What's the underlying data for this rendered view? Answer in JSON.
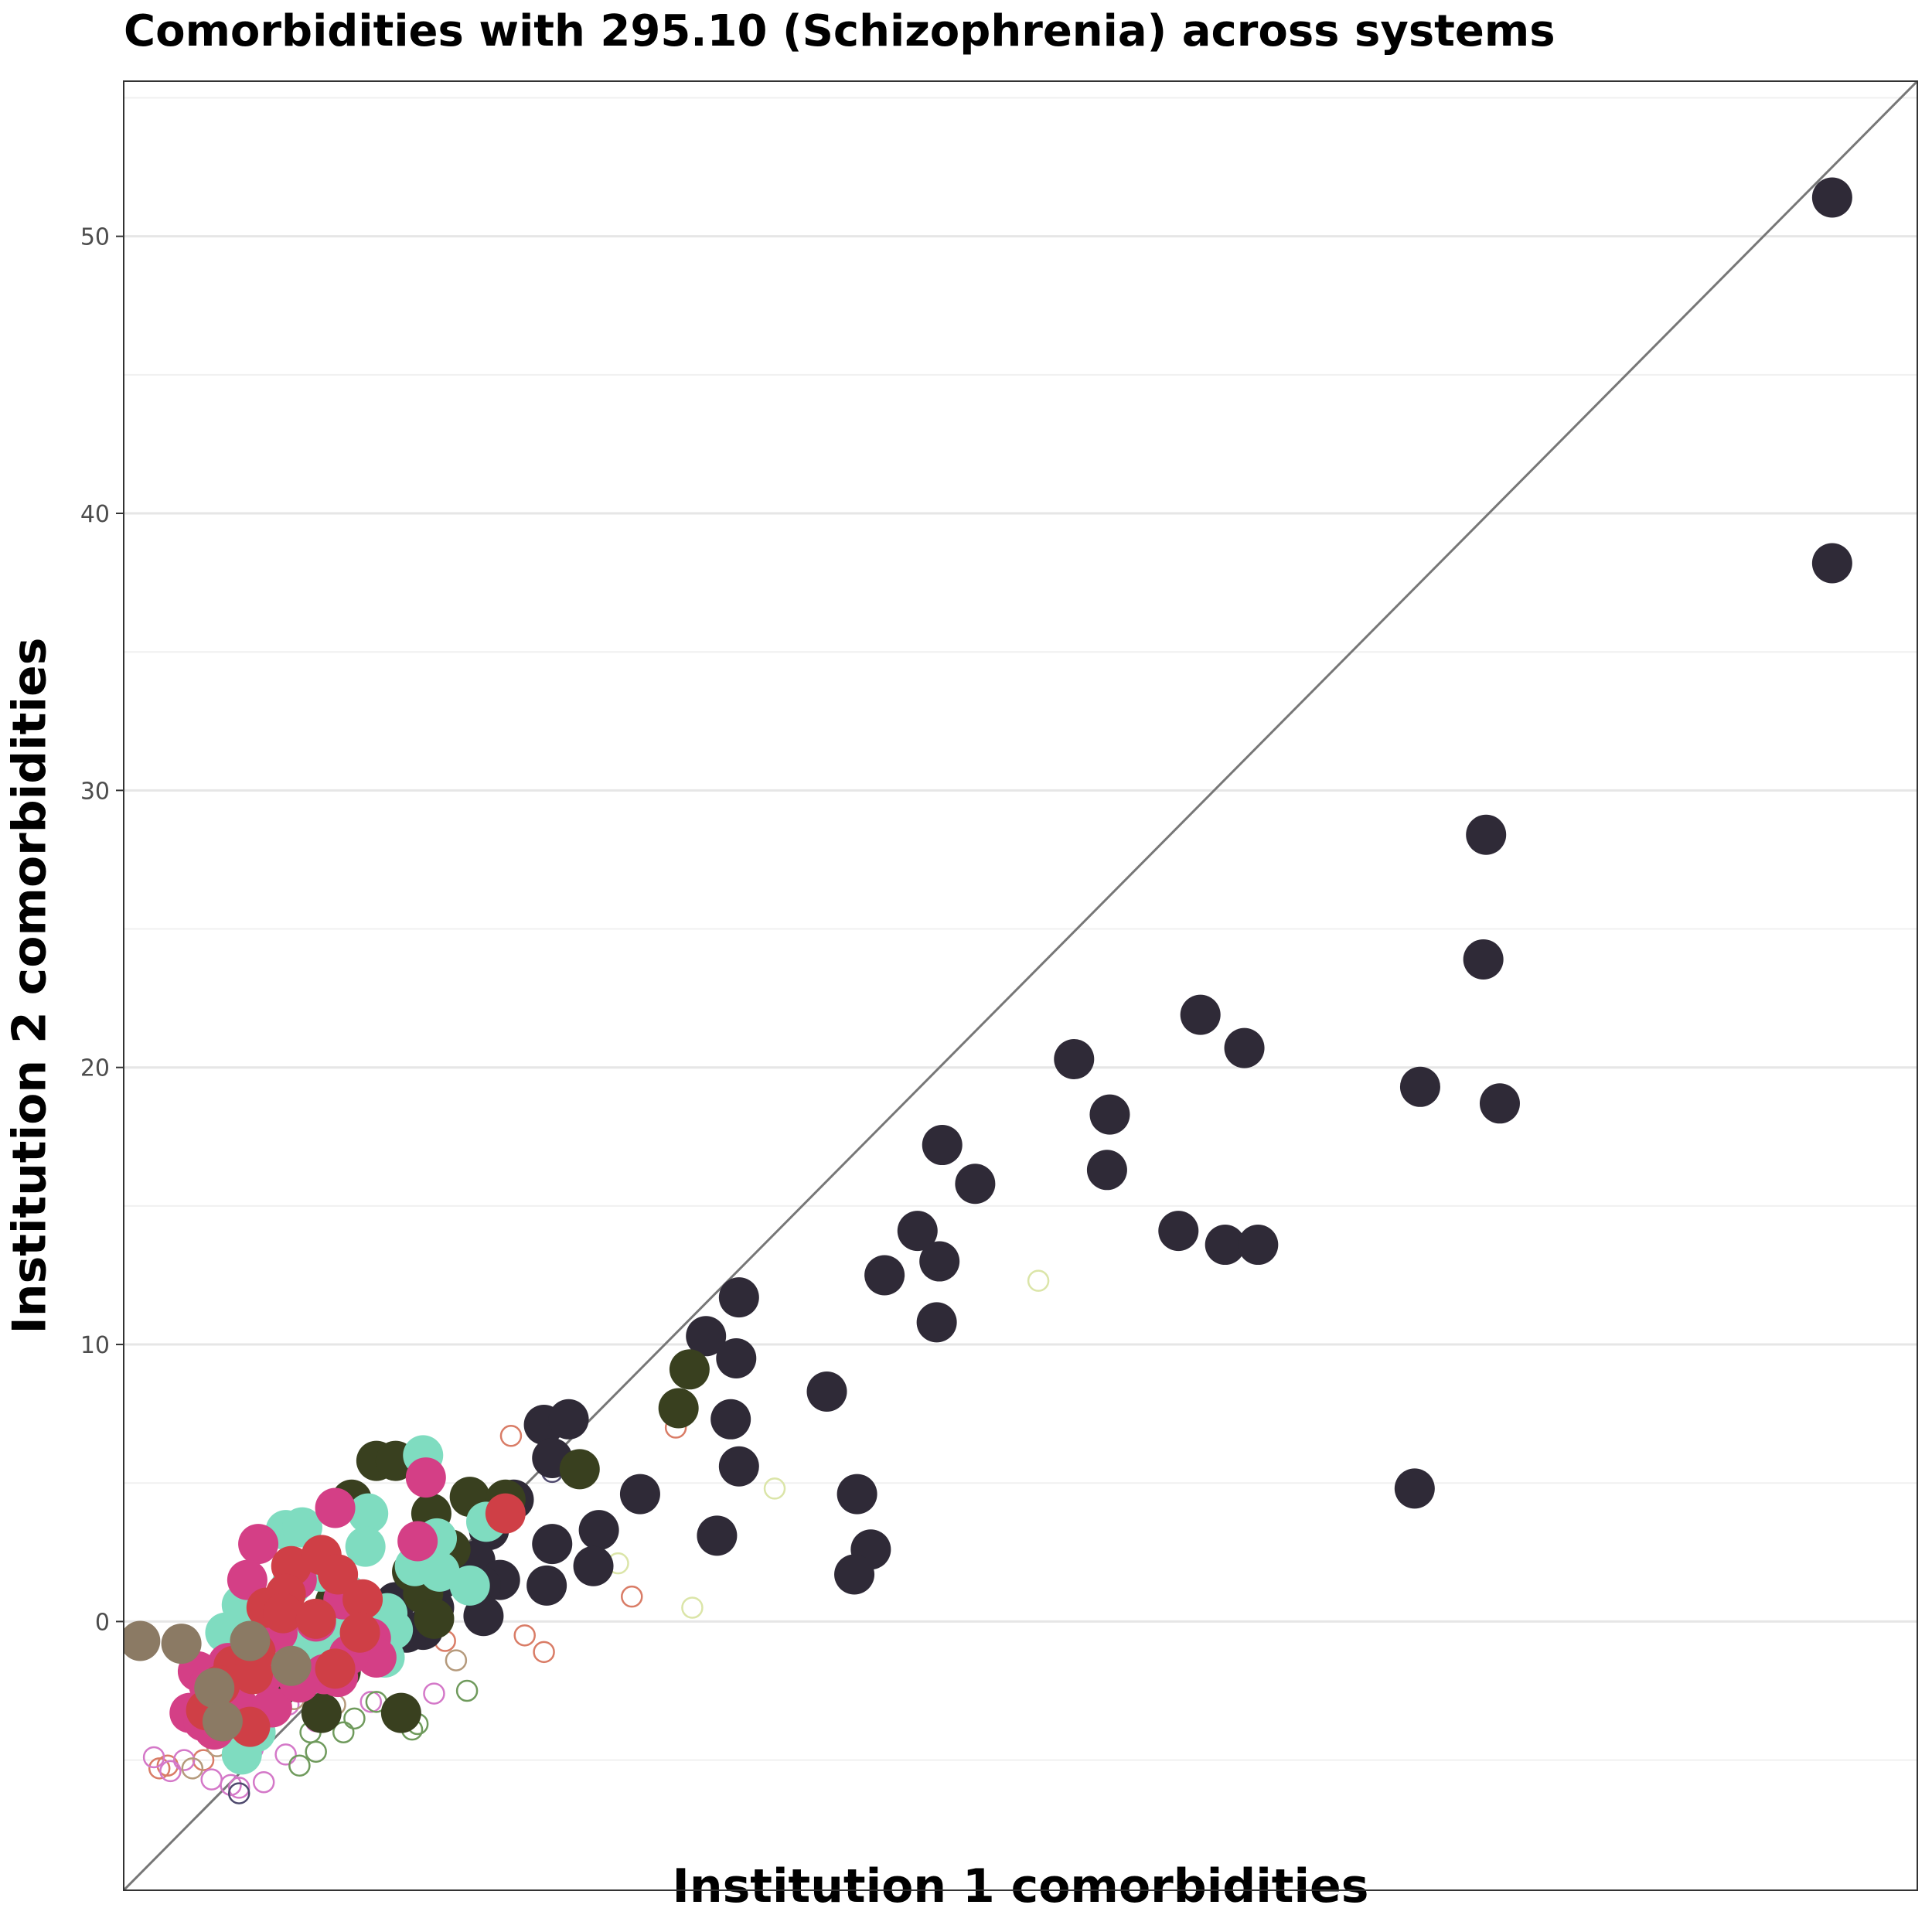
{
  "chart_data": {
    "type": "scatter",
    "title": "Comorbidities with 295.10 (Schizophrenia) across systems",
    "xlabel": "Institution 1 comorbidities",
    "ylabel": "Institution 2 comorbidities",
    "ylim": [
      -9.7,
      55.6
    ],
    "xlim": [
      -9.7,
      55.6
    ],
    "y_ticks": [
      0,
      10,
      20,
      30,
      40,
      50
    ],
    "x_ticks": [],
    "grid": "horizontal",
    "reference_line": {
      "type": "y=x",
      "color": "#777777"
    },
    "colors": {
      "dark": "#2f2a37",
      "olive": "#39401f",
      "teal": "#7fdcc0",
      "magenta": "#d43f86",
      "red": "#cf3f46",
      "brown": "#8b7a64"
    },
    "series": [
      {
        "color": "#2f2a37",
        "filled": true,
        "points": [
          [
            52.5,
            51.4
          ],
          [
            52.5,
            38.2
          ],
          [
            39.9,
            28.4
          ],
          [
            39.8,
            23.9
          ],
          [
            37.5,
            19.3
          ],
          [
            40.4,
            18.7
          ],
          [
            37.3,
            4.8
          ],
          [
            29.5,
            21.9
          ],
          [
            31.1,
            20.7
          ],
          [
            24.9,
            20.3
          ],
          [
            26.2,
            18.3
          ],
          [
            26.1,
            16.3
          ],
          [
            28.7,
            14.1
          ],
          [
            30.4,
            13.6
          ],
          [
            31.6,
            13.6
          ],
          [
            20.1,
            17.2
          ],
          [
            21.3,
            15.8
          ],
          [
            19.2,
            14.1
          ],
          [
            20.0,
            13.0
          ],
          [
            19.9,
            10.8
          ],
          [
            18.0,
            12.5
          ],
          [
            12.7,
            11.7
          ],
          [
            11.5,
            10.3
          ],
          [
            12.6,
            9.5
          ],
          [
            15.9,
            8.3
          ],
          [
            12.4,
            7.3
          ],
          [
            12.7,
            5.6
          ],
          [
            17.0,
            4.6
          ],
          [
            11.9,
            3.1
          ],
          [
            17.5,
            2.6
          ],
          [
            16.9,
            1.7
          ],
          [
            9.1,
            4.6
          ],
          [
            5.6,
            7.1
          ],
          [
            6.5,
            7.3
          ],
          [
            5.9,
            5.9
          ],
          [
            4.5,
            4.4
          ],
          [
            7.6,
            3.3
          ],
          [
            5.9,
            2.8
          ],
          [
            7.4,
            2.0
          ],
          [
            3.6,
            3.3
          ],
          [
            3.1,
            2.2
          ],
          [
            4.0,
            1.5
          ],
          [
            3.3,
            1.3
          ],
          [
            5.7,
            1.3
          ],
          [
            3.4,
            0.2
          ],
          [
            0.9,
            1.9
          ],
          [
            1.8,
            1.5
          ],
          [
            1.6,
            0.5
          ],
          [
            0.2,
            0.7
          ],
          [
            1.2,
            -0.3
          ],
          [
            -0.5,
            0.2
          ],
          [
            -0.9,
            -0.8
          ],
          [
            0.6,
            -0.4
          ]
        ]
      },
      {
        "color": "#39401f",
        "filled": true,
        "points": [
          [
            10.9,
            9.1
          ],
          [
            10.5,
            7.7
          ],
          [
            6.9,
            5.5
          ],
          [
            -0.5,
            5.8
          ],
          [
            0.2,
            5.8
          ],
          [
            -1.4,
            4.4
          ],
          [
            2.9,
            4.5
          ],
          [
            4.2,
            4.4
          ],
          [
            1.5,
            3.9
          ],
          [
            2.2,
            2.6
          ],
          [
            0.8,
            1.8
          ],
          [
            1.2,
            1.0
          ],
          [
            1.6,
            0.1
          ],
          [
            -2.0,
            0.7
          ],
          [
            -1.0,
            -0.5
          ],
          [
            0.4,
            -3.3
          ],
          [
            -2.5,
            -3.3
          ],
          [
            -2.9,
            -1.5
          ],
          [
            -4.1,
            -2.4
          ],
          [
            -1.8,
            -1.8
          ]
        ]
      },
      {
        "color": "#7fdcc0",
        "filled": true,
        "points": [
          [
            1.2,
            6.0
          ],
          [
            -3.8,
            3.3
          ],
          [
            -3.2,
            3.4
          ],
          [
            -0.8,
            3.9
          ],
          [
            3.5,
            3.6
          ],
          [
            -0.9,
            2.7
          ],
          [
            1.7,
            3.0
          ],
          [
            0.9,
            2.0
          ],
          [
            1.8,
            1.8
          ],
          [
            -2.5,
            1.8
          ],
          [
            -1.6,
            1.0
          ],
          [
            -3.6,
            1.3
          ],
          [
            -5.4,
            0.6
          ],
          [
            -4.9,
            -0.1
          ],
          [
            -6.0,
            -0.4
          ],
          [
            -3.5,
            -0.6
          ],
          [
            -2.0,
            -0.3
          ],
          [
            0.1,
            -0.3
          ],
          [
            -1.1,
            0.7
          ],
          [
            -0.1,
            0.3
          ],
          [
            -2.8,
            -1.1
          ],
          [
            -4.4,
            -1.6
          ],
          [
            -3.1,
            -2.0
          ],
          [
            -6.4,
            -2.6
          ],
          [
            -5.7,
            -3.0
          ],
          [
            -4.9,
            -4.0
          ],
          [
            -5.4,
            -4.8
          ],
          [
            -0.2,
            -1.3
          ],
          [
            -4.0,
            -1.4
          ],
          [
            2.9,
            1.3
          ]
        ]
      },
      {
        "color": "#d43f86",
        "filled": true,
        "points": [
          [
            1.3,
            5.2
          ],
          [
            -4.8,
            2.8
          ],
          [
            -5.2,
            1.5
          ],
          [
            -2.0,
            4.1
          ],
          [
            1.0,
            2.9
          ],
          [
            -3.4,
            1.5
          ],
          [
            -1.7,
            0.8
          ],
          [
            -2.7,
            0.0
          ],
          [
            -4.1,
            -0.4
          ],
          [
            -0.7,
            -0.6
          ],
          [
            -0.8,
            -1.0
          ],
          [
            -5.9,
            -1.5
          ],
          [
            -7.0,
            -1.8
          ],
          [
            -4.6,
            -1.9
          ],
          [
            -2.4,
            -1.9
          ],
          [
            -1.9,
            -2.0
          ],
          [
            -6.1,
            -2.7
          ],
          [
            -5.5,
            -3.1
          ],
          [
            -4.3,
            -3.1
          ],
          [
            -7.3,
            -3.3
          ],
          [
            -6.8,
            -3.6
          ],
          [
            -6.4,
            -3.9
          ],
          [
            -3.3,
            -2.2
          ],
          [
            -0.5,
            -1.3
          ],
          [
            -1.5,
            -1.2
          ],
          [
            -6.6,
            -2.3
          ]
        ]
      },
      {
        "color": "#cf3f46",
        "filled": true,
        "points": [
          [
            4.2,
            3.9
          ],
          [
            -3.6,
            2.0
          ],
          [
            -2.5,
            2.4
          ],
          [
            -1.9,
            1.7
          ],
          [
            -3.8,
            1.0
          ],
          [
            -4.5,
            0.5
          ],
          [
            -3.9,
            0.3
          ],
          [
            -2.7,
            0.1
          ],
          [
            -1.0,
            0.8
          ],
          [
            -4.9,
            -1.1
          ],
          [
            -5.7,
            -1.6
          ],
          [
            -5.0,
            -1.9
          ],
          [
            -6.2,
            -2.3
          ],
          [
            -6.7,
            -3.2
          ],
          [
            -6.1,
            -3.6
          ],
          [
            -5.1,
            -3.8
          ],
          [
            -2.0,
            -1.7
          ],
          [
            -1.1,
            -0.4
          ]
        ]
      },
      {
        "color": "#8b7a64",
        "filled": true,
        "points": [
          [
            -9.1,
            -0.7
          ],
          [
            -7.6,
            -0.8
          ],
          [
            -6.4,
            -2.4
          ],
          [
            -6.1,
            -3.6
          ],
          [
            -5.1,
            -0.7
          ],
          [
            -3.6,
            -1.6
          ]
        ]
      },
      {
        "color": "#d97c66",
        "filled": false,
        "points": [
          [
            10.7,
            7.9
          ],
          [
            10.4,
            7.0
          ],
          [
            8.8,
            0.9
          ],
          [
            4.4,
            6.7
          ],
          [
            4.9,
            -0.5
          ],
          [
            5.6,
            -1.1
          ],
          [
            2.0,
            -0.7
          ],
          [
            -1.2,
            -0.6
          ],
          [
            -3.3,
            -1.0
          ],
          [
            -6.8,
            -5.0
          ],
          [
            -8.4,
            -5.3
          ],
          [
            -8.1,
            -5.2
          ]
        ]
      },
      {
        "color": "#dbe5a8",
        "filled": false,
        "points": [
          [
            23.6,
            12.3
          ],
          [
            14.0,
            4.8
          ],
          [
            11.0,
            0.5
          ],
          [
            8.3,
            2.1
          ]
        ]
      },
      {
        "color": "#d478c8",
        "filled": false,
        "points": [
          [
            -8.6,
            -4.9
          ],
          [
            -7.5,
            -5.0
          ],
          [
            -6.5,
            -5.7
          ],
          [
            -5.8,
            -5.9
          ],
          [
            -4.6,
            -5.8
          ],
          [
            -5.0,
            -4.6
          ],
          [
            -3.8,
            -4.8
          ],
          [
            -2.7,
            -3.6
          ],
          [
            -3.7,
            -3.0
          ],
          [
            -0.7,
            -2.9
          ],
          [
            1.6,
            -2.6
          ],
          [
            -5.5,
            -6.0
          ],
          [
            -8.0,
            -5.4
          ]
        ]
      },
      {
        "color": "#6f9a5c",
        "filled": false,
        "points": [
          [
            -2.7,
            -4.7
          ],
          [
            -1.7,
            -4.0
          ],
          [
            1.0,
            -3.7
          ],
          [
            0.8,
            -3.9
          ],
          [
            -2.2,
            -3.2
          ],
          [
            -1.3,
            -3.5
          ],
          [
            2.8,
            -2.5
          ],
          [
            -0.5,
            -2.9
          ],
          [
            -3.3,
            -5.2
          ],
          [
            -2.9,
            -4.0
          ]
        ]
      },
      {
        "color": "#b59a7c",
        "filled": false,
        "points": [
          [
            -6.3,
            -4.5
          ],
          [
            -7.2,
            -5.3
          ],
          [
            -3.5,
            -2.8
          ],
          [
            0.2,
            -3.4
          ],
          [
            -2.0,
            -3.0
          ],
          [
            2.4,
            -1.4
          ]
        ]
      },
      {
        "color": "#4f4a6e",
        "filled": false,
        "points": [
          [
            5.9,
            5.4
          ],
          [
            -5.5,
            -6.2
          ]
        ]
      }
    ]
  }
}
